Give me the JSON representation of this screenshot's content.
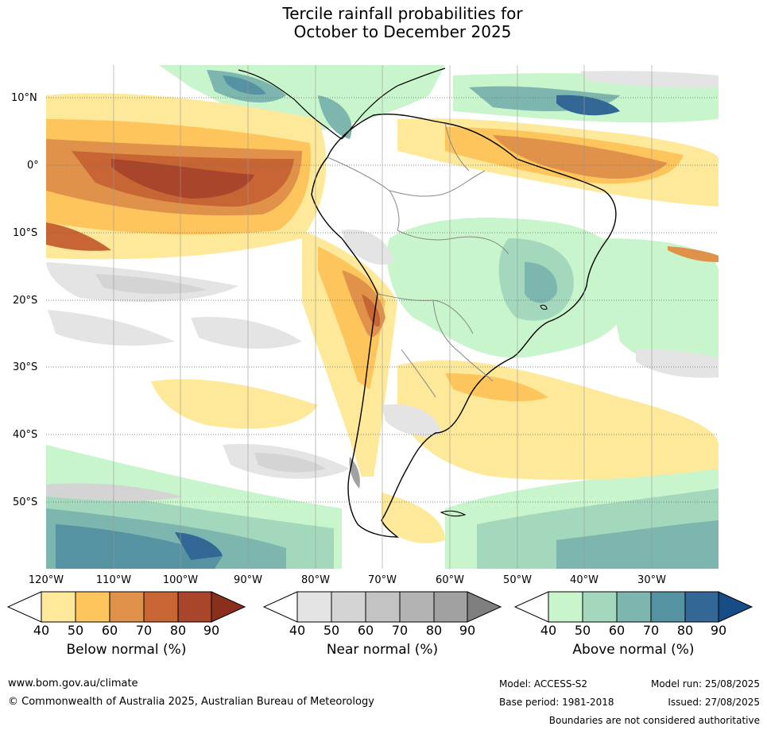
{
  "title": {
    "line1": "Tercile rainfall probabilities for",
    "line2": "October to December 2025"
  },
  "map": {
    "lat_labels": [
      "10°N",
      "0°",
      "10°S",
      "20°S",
      "30°S",
      "40°S",
      "50°S"
    ],
    "lon_labels": [
      "120°W",
      "110°W",
      "100°W",
      "90°W",
      "80°W",
      "70°W",
      "60°W",
      "50°W",
      "40°W",
      "30°W"
    ]
  },
  "colorbars": [
    {
      "label": "Below normal (%)",
      "ticks": [
        "40",
        "50",
        "60",
        "70",
        "80",
        "90"
      ],
      "colors": [
        "#ffffff",
        "#fee99a",
        "#fdc55c",
        "#e0924a",
        "#c86534",
        "#a9452a",
        "#8b2f1d"
      ]
    },
    {
      "label": "Near normal (%)",
      "ticks": [
        "40",
        "50",
        "60",
        "70",
        "80",
        "90"
      ],
      "colors": [
        "#ffffff",
        "#e4e4e4",
        "#d4d4d4",
        "#c3c3c3",
        "#b3b3b3",
        "#a1a1a1",
        "#7f7f7f"
      ]
    },
    {
      "label": "Above normal (%)",
      "ticks": [
        "40",
        "50",
        "60",
        "70",
        "80",
        "90"
      ],
      "colors": [
        "#ffffff",
        "#c8f5cb",
        "#a4d8bd",
        "#7cb6ae",
        "#5593a2",
        "#336796",
        "#174d86"
      ]
    }
  ],
  "footer": {
    "website": "www.bom.gov.au/climate",
    "copyright": "© Commonwealth of Australia 2025, Australian Bureau of Meteorology",
    "model": "Model: ACCESS-S2",
    "base_period": "Base period: 1981-2018",
    "model_run": "Model run: 25/08/2025",
    "issued": "Issued: 27/08/2025",
    "disclaimer": "Boundaries are not considered authoritative"
  }
}
